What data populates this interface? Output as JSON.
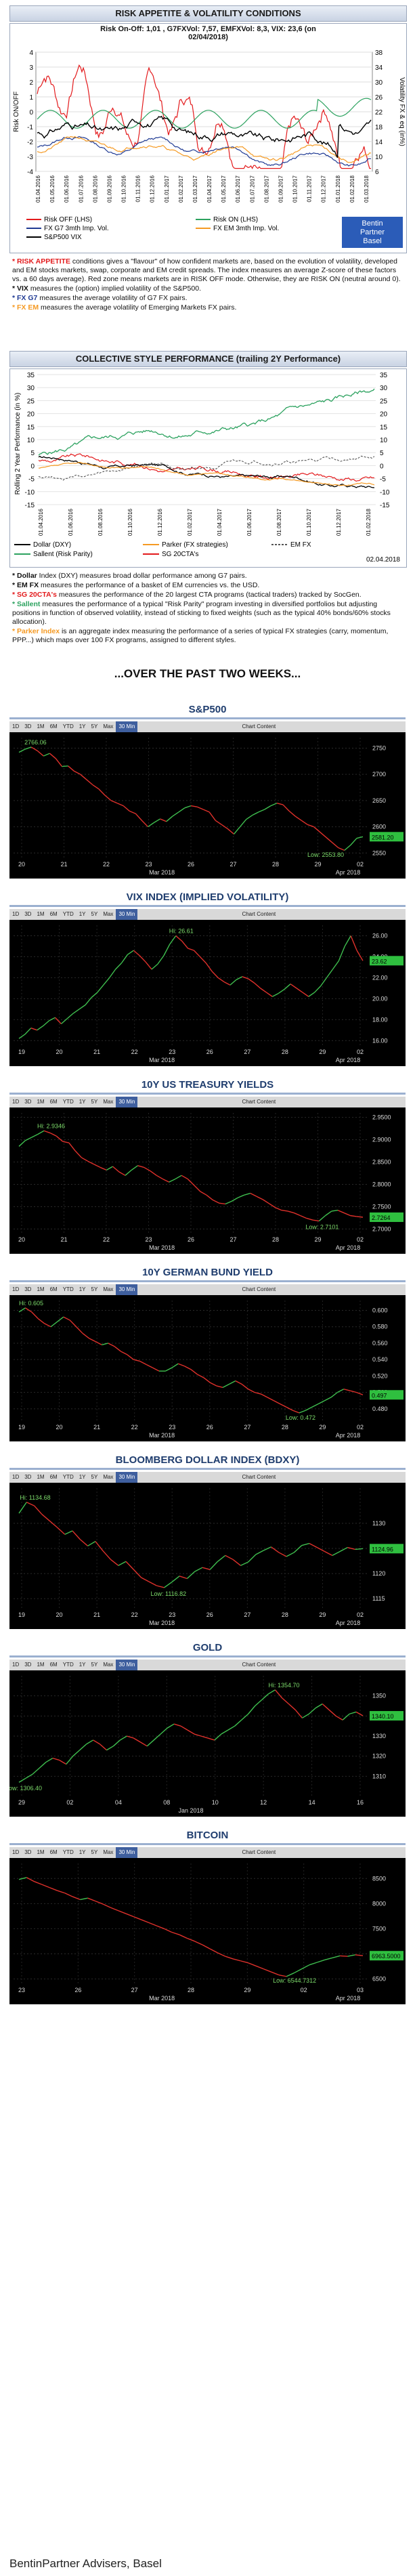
{
  "risk": {
    "title": "RISK APPETITE & VOLATILITY CONDITIONS",
    "stats_line1": "Risk On-Off: 1,01 , G7FXVol: 7,57, EMFXVol: 8,3, VIX: 23,6 (on",
    "stats_line2": "02/04/2018)",
    "y_left_label": "Risk ON/OFF",
    "y_right_label": "Volatility FX & eq (in%)",
    "left_ticks": [
      "4",
      "3",
      "2",
      "1",
      "0",
      "-1",
      "-2",
      "-3",
      "-4"
    ],
    "right_ticks": [
      "38",
      "34",
      "30",
      "26",
      "22",
      "18",
      "14",
      "10",
      "6"
    ],
    "x_ticks": [
      "01.04.2016",
      "01.05.2016",
      "01.06.2016",
      "01.07.2016",
      "01.08.2016",
      "01.09.2016",
      "01.10.2016",
      "01.11.2016",
      "01.12.2016",
      "01.01.2017",
      "01.02.2017",
      "01.03.2017",
      "01.04.2017",
      "01.05.2017",
      "01.06.2017",
      "01.07.2017",
      "01.08.2017",
      "01.09.2017",
      "01.10.2017",
      "01.11.2017",
      "01.12.2017",
      "01.01.2018",
      "01.02.2018",
      "01.03.2018"
    ],
    "legend": [
      {
        "name": "Risk OFF (LHS)",
        "color": "#e31a1c"
      },
      {
        "name": "Risk ON (LHS)",
        "color": "#2ca25f"
      },
      {
        "name": "FX G7 3mth Imp. Vol.",
        "color": "#1f3a93"
      },
      {
        "name": "FX EM 3mth Imp. Vol.",
        "color": "#f59a23"
      },
      {
        "name": "S&P500 VIX",
        "color": "#000000"
      }
    ],
    "logo_line1": "Bentin",
    "logo_line2": "Partner",
    "logo_line3": "Basel"
  },
  "risk_notes": [
    {
      "key": "* RISK APPETITE",
      "key_color": "#e31a1c",
      "text": " conditions gives a \"flavour\" of how confident markets are, based on the evolution of volatility, developed and EM stocks markets, swap, corporate and EM credit spreads. The index measures an average Z-score of these  factors vs. a 60 days average). Red zone means markets are in RISK OFF mode. Otherwise, they are RISK ON (neutral around 0)."
    },
    {
      "key": "* VIX",
      "key_color": "#111111",
      "text": " measures the (option) implied volatility of the S&P500."
    },
    {
      "key": "* FX G7",
      "key_color": "#1f3a93",
      "text": " measures the average volatility of G7 FX pairs."
    },
    {
      "key": "* FX EM",
      "key_color": "#f59a23",
      "text": " measures the average volatility of Emerging Markets FX pairs."
    }
  ],
  "style": {
    "title": "COLLECTIVE STYLE PERFORMANCE (trailing 2Y Performance)",
    "y_label": "Rolling 2 Year Performance (in %)",
    "ticks": [
      "35",
      "30",
      "25",
      "20",
      "15",
      "10",
      "5",
      "0",
      "-5",
      "-10",
      "-15"
    ],
    "x_ticks": [
      "01.04.2016",
      "01.06.2016",
      "01.08.2016",
      "01.10.2016",
      "01.12.2016",
      "01.02.2017",
      "01.04.2017",
      "01.06.2017",
      "01.08.2017",
      "01.10.2017",
      "01.12.2017",
      "01.02.2018"
    ],
    "legend": [
      {
        "name": "Dollar (DXY)",
        "color": "#000000",
        "dash": false
      },
      {
        "name": "Parker (FX strategies)",
        "color": "#f59a23",
        "dash": false
      },
      {
        "name": "EM FX",
        "color": "#555555",
        "dash": true
      },
      {
        "name": "Sallent (Risk Parity)",
        "color": "#2ca25f",
        "dash": false
      },
      {
        "name": "SG 20CTA's",
        "color": "#e31a1c",
        "dash": false
      }
    ],
    "date": "02.04.2018"
  },
  "style_notes": [
    {
      "key": "* Dollar",
      "key_color": "#111111",
      "text": " Index (DXY) measures broad dollar performance among G7 pairs."
    },
    {
      "key": "* EM FX",
      "key_color": "#111111",
      "text": " measures the performance of a basket of EM currencies vs. the USD."
    },
    {
      "key": "* SG 20CTA's",
      "key_color": "#e31a1c",
      "text": " measures the performance of the 20 largest CTA programs (tactical traders) tracked by SocGen."
    },
    {
      "key": "* Sallent",
      "key_color": "#2ca25f",
      "text": " measures the performance of a typical \"Risk Parity\" program investing in diversified portfolios but adjusting positions in function of observed volatility, instead of sticking to fixed weights (such as the typical 40% bonds/60% stocks allocation)."
    },
    {
      "key": "* Parker Index",
      "key_color": "#f59a23",
      "text": " is an aggregate index measuring the performance of a series of typical FX strategies (carry, momentum, PPP...) which maps over 100 FX programs, assigned to different styles."
    }
  ],
  "two_weeks_title": "...OVER THE PAST TWO WEEKS...",
  "toolbar": [
    "1D",
    "3D",
    "1M",
    "6M",
    "YTD",
    "1Y",
    "5Y",
    "Max",
    "30 Min",
    "Chart Content"
  ],
  "markets": [
    {
      "title": "S&P500",
      "yticks": [
        "2750",
        "2700",
        "2650",
        "2600",
        "2550"
      ],
      "xticks": [
        "20",
        "21",
        "22",
        "23",
        "26",
        "27",
        "28",
        "29",
        "02"
      ],
      "xsub": [
        "Mar 2018",
        "Apr 2018"
      ],
      "hi_label": "2766.06",
      "lo_label": "Low: 2553.80",
      "last": "2581.20",
      "values": [
        2742,
        2748,
        2752,
        2745,
        2735,
        2740,
        2730,
        2715,
        2716,
        2706,
        2700,
        2690,
        2680,
        2672,
        2660,
        2650,
        2645,
        2640,
        2630,
        2625,
        2612,
        2600,
        2608,
        2615,
        2610,
        2620,
        2628,
        2636,
        2640,
        2638,
        2633,
        2628,
        2612,
        2604,
        2596,
        2586,
        2600,
        2614,
        2622,
        2628,
        2633,
        2640,
        2645,
        2642,
        2630,
        2620,
        2612,
        2604,
        2600,
        2590,
        2580,
        2570,
        2560,
        2555,
        2565,
        2578,
        2581
      ]
    },
    {
      "title": "VIX INDEX (IMPLIED VOLATILITY)",
      "yticks": [
        "26.00",
        "24.00",
        "22.00",
        "20.00",
        "18.00",
        "16.00"
      ],
      "xticks": [
        "19",
        "20",
        "21",
        "22",
        "23",
        "26",
        "27",
        "28",
        "29",
        "02"
      ],
      "xsub": [
        "Mar 2018",
        "Apr 2018"
      ],
      "hi_label": "Hi: 26.61",
      "lo_label": "",
      "last": "23.62",
      "values": [
        16.2,
        16.6,
        17.2,
        17.0,
        17.4,
        17.9,
        18.2,
        17.6,
        18.1,
        18.6,
        19.0,
        19.4,
        20.1,
        20.6,
        21.3,
        22.0,
        22.8,
        23.4,
        24.2,
        24.6,
        24.1,
        23.5,
        22.8,
        23.3,
        24.1,
        25.2,
        26.0,
        25.5,
        24.8,
        24.6,
        24.0,
        23.4,
        22.6,
        22.0,
        21.6,
        21.3,
        21.8,
        22.1,
        21.9,
        21.5,
        21.0,
        20.6,
        20.2,
        20.5,
        20.9,
        21.4,
        21.0,
        20.6,
        20.2,
        20.6,
        21.2,
        22.0,
        22.8,
        23.6,
        25.0,
        26.0,
        24.6,
        23.62
      ]
    },
    {
      "title": "10Y US TREASURY YIELDS",
      "yticks": [
        "2.9500",
        "2.9000",
        "2.8500",
        "2.8000",
        "2.7500",
        "2.7000"
      ],
      "xticks": [
        "20",
        "21",
        "22",
        "23",
        "26",
        "27",
        "28",
        "29",
        "02"
      ],
      "xsub": [
        "Mar 2018",
        "Apr 2018"
      ],
      "hi_label": "Hi: 2.9346",
      "lo_label": "Low: 2.7101",
      "last": "2.7264",
      "values": [
        2.885,
        2.898,
        2.905,
        2.912,
        2.92,
        2.915,
        2.908,
        2.896,
        2.893,
        2.875,
        2.86,
        2.852,
        2.845,
        2.838,
        2.832,
        2.84,
        2.828,
        2.82,
        2.832,
        2.842,
        2.838,
        2.83,
        2.82,
        2.812,
        2.805,
        2.812,
        2.82,
        2.812,
        2.798,
        2.784,
        2.776,
        2.765,
        2.758,
        2.756,
        2.762,
        2.77,
        2.776,
        2.78,
        2.773,
        2.766,
        2.757,
        2.748,
        2.742,
        2.74,
        2.736,
        2.73,
        2.724,
        2.72,
        2.718,
        2.73,
        2.74,
        2.742,
        2.736,
        2.73,
        2.728,
        2.7264
      ]
    },
    {
      "title": "10Y GERMAN BUND YIELD",
      "yticks": [
        "0.600",
        "0.580",
        "0.560",
        "0.540",
        "0.520",
        "0.500",
        "0.480"
      ],
      "xticks": [
        "19",
        "20",
        "21",
        "22",
        "23",
        "26",
        "27",
        "28",
        "29",
        "02"
      ],
      "xsub": [
        "Mar 2018",
        "Apr 2018"
      ],
      "hi_label": "Hi: 0.605",
      "lo_label": "Low: 0.472",
      "last": "0.497",
      "values": [
        0.598,
        0.603,
        0.598,
        0.59,
        0.584,
        0.58,
        0.586,
        0.592,
        0.588,
        0.58,
        0.572,
        0.566,
        0.562,
        0.558,
        0.56,
        0.556,
        0.55,
        0.546,
        0.54,
        0.538,
        0.534,
        0.53,
        0.526,
        0.526,
        0.53,
        0.535,
        0.532,
        0.528,
        0.522,
        0.518,
        0.512,
        0.508,
        0.506,
        0.51,
        0.514,
        0.51,
        0.504,
        0.5,
        0.498,
        0.494,
        0.49,
        0.486,
        0.482,
        0.478,
        0.475,
        0.478,
        0.482,
        0.486,
        0.49,
        0.494,
        0.5,
        0.504,
        0.502,
        0.5,
        0.497
      ]
    },
    {
      "title": "BLOOMBERG DOLLAR INDEX (BDXY)",
      "yticks": [
        "1130",
        "1125",
        "1120",
        "1115"
      ],
      "xticks": [
        "19",
        "20",
        "21",
        "22",
        "23",
        "26",
        "27",
        "28",
        "29",
        "02"
      ],
      "xsub": [
        "Mar 2018",
        "Apr 2018"
      ],
      "hi_label": "Hi: 1134.68",
      "lo_label": "Low: 1116.82",
      "last": "1124.96",
      "values": [
        1132,
        1134.2,
        1133.5,
        1131.8,
        1130.5,
        1129.2,
        1127.8,
        1128.5,
        1126.8,
        1125.5,
        1126.4,
        1124.5,
        1122.8,
        1121.6,
        1122.4,
        1120.8,
        1119.2,
        1118.4,
        1117.6,
        1117.2,
        1118.3,
        1119.5,
        1119.0,
        1120.4,
        1121.2,
        1120.8,
        1122.4,
        1123.6,
        1122.8,
        1121.6,
        1122.3,
        1123.8,
        1124.6,
        1125.3,
        1124.2,
        1123.4,
        1124.2,
        1125.6,
        1126.0,
        1125.2,
        1124.4,
        1123.6,
        1124.4,
        1125.2,
        1124.8,
        1124.96
      ]
    },
    {
      "title": "GOLD",
      "yticks": [
        "1350",
        "1340",
        "1330",
        "1320",
        "1310"
      ],
      "xticks": [
        "29",
        "02",
        "04",
        "08",
        "10",
        "12",
        "14",
        "16"
      ],
      "xsub": [
        "Jan 2018"
      ],
      "hi_label": "Hi: 1354.70",
      "lo_label": "Low: 1306.40",
      "last": "1340.10",
      "values": [
        1307,
        1309,
        1311,
        1314,
        1317,
        1319,
        1318,
        1316,
        1320,
        1323,
        1326,
        1328,
        1326,
        1323,
        1325,
        1328,
        1330,
        1329,
        1327,
        1325,
        1328,
        1331,
        1334,
        1336,
        1335,
        1333,
        1331,
        1330,
        1329,
        1328,
        1331,
        1333,
        1335,
        1338,
        1341,
        1345,
        1348,
        1351,
        1353,
        1349,
        1346,
        1343,
        1339,
        1341,
        1344,
        1346,
        1343,
        1340,
        1338,
        1341,
        1342,
        1340.1
      ]
    },
    {
      "title": "BITCOIN",
      "yticks": [
        "8500",
        "8000",
        "7500",
        "7000",
        "6500"
      ],
      "xticks": [
        "23",
        "26",
        "27",
        "28",
        "29",
        "02",
        "03"
      ],
      "xsub": [
        "Mar 2018",
        "Apr 2018"
      ],
      "hi_label": "",
      "lo_label": "Low: 6544.7312",
      "last": "6963.5000",
      "values": [
        8480,
        8520,
        8440,
        8380,
        8320,
        8260,
        8210,
        8140,
        8080,
        8110,
        8050,
        7990,
        7920,
        7860,
        7800,
        7740,
        7680,
        7620,
        7560,
        7500,
        7430,
        7380,
        7310,
        7250,
        7180,
        7100,
        7020,
        6950,
        6900,
        6860,
        6820,
        6760,
        6700,
        6640,
        6580,
        6550,
        6620,
        6700,
        6780,
        6830,
        6880,
        6920,
        6960,
        6950,
        6980,
        6963.5
      ]
    }
  ],
  "footer": "BentinPartner Advisers, Basel",
  "chart_data": [
    {
      "type": "line",
      "title": "S&P500",
      "series": [
        {
          "name": "S&P500",
          "values": [
            2742,
            2748,
            2752,
            2745,
            2735,
            2740,
            2730,
            2715,
            2716,
            2706,
            2700,
            2690,
            2680,
            2672,
            2660,
            2650,
            2645,
            2640,
            2630,
            2625,
            2612,
            2600,
            2608,
            2615,
            2610,
            2620,
            2628,
            2636,
            2640,
            2638,
            2633,
            2628,
            2612,
            2604,
            2596,
            2586,
            2600,
            2614,
            2622,
            2628,
            2633,
            2640,
            2645,
            2642,
            2630,
            2620,
            2612,
            2604,
            2600,
            2590,
            2580,
            2570,
            2560,
            2555,
            2565,
            2578,
            2581
          ]
        }
      ],
      "ylim": [
        2540,
        2770
      ]
    },
    {
      "type": "line",
      "title": "VIX INDEX (IMPLIED VOLATILITY)",
      "series": [
        {
          "name": "VIX",
          "values": [
            16.2,
            16.6,
            17.2,
            17.0,
            17.4,
            17.9,
            18.2,
            17.6,
            18.1,
            18.6,
            19.0,
            19.4,
            20.1,
            20.6,
            21.3,
            22.0,
            22.8,
            23.4,
            24.2,
            24.6,
            24.1,
            23.5,
            22.8,
            23.3,
            24.1,
            25.2,
            26.0,
            25.5,
            24.8,
            24.6,
            24.0,
            23.4,
            22.6,
            22.0,
            21.6,
            21.3,
            21.8,
            22.1,
            21.9,
            21.5,
            21.0,
            20.6,
            20.2,
            20.5,
            20.9,
            21.4,
            21.0,
            20.6,
            20.2,
            20.6,
            21.2,
            22.0,
            22.8,
            23.6,
            25.0,
            26.0,
            24.6,
            23.62
          ]
        }
      ],
      "ylim": [
        15.5,
        27
      ]
    },
    {
      "type": "line",
      "title": "10Y US TREASURY YIELDS",
      "ylim": [
        2.69,
        2.96
      ]
    },
    {
      "type": "line",
      "title": "10Y GERMAN BUND YIELD",
      "ylim": [
        0.465,
        0.612
      ]
    },
    {
      "type": "line",
      "title": "BLOOMBERG DOLLAR INDEX (BDXY)",
      "ylim": [
        1113,
        1137
      ]
    },
    {
      "type": "line",
      "title": "GOLD",
      "ylim": [
        1300,
        1360
      ]
    },
    {
      "type": "line",
      "title": "BITCOIN",
      "ylim": [
        6400,
        8800
      ]
    }
  ]
}
